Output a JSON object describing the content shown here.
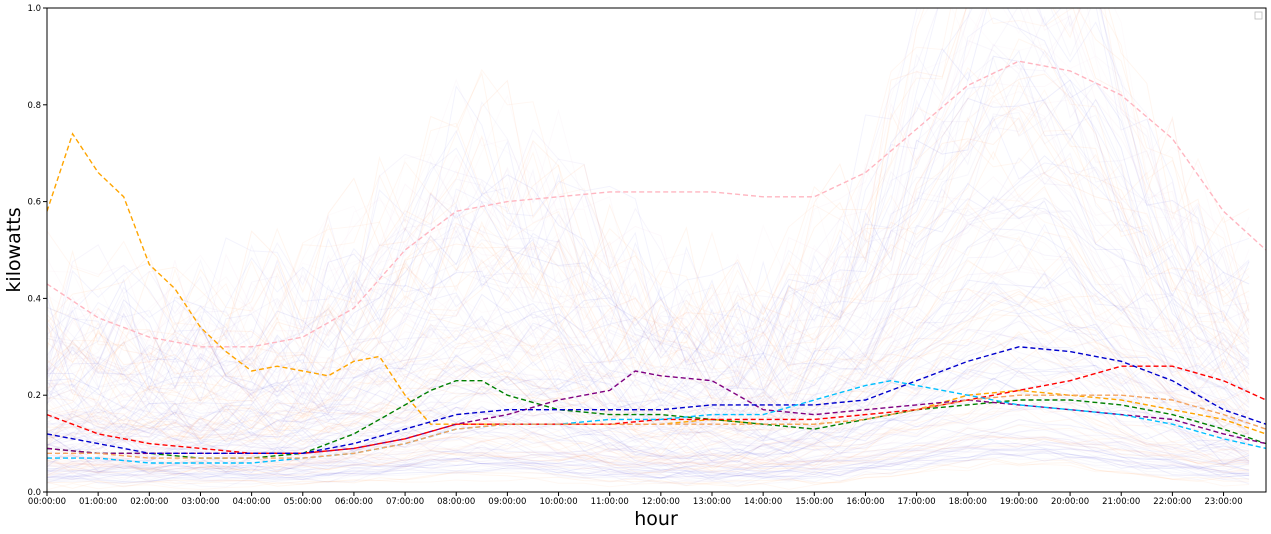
{
  "chart_data": {
    "type": "line",
    "title": "",
    "xlabel": "hour",
    "ylabel": "kilowatts",
    "xlim": [
      0,
      23.83
    ],
    "ylim": [
      0,
      1.0
    ],
    "x_tick_labels": [
      "00:00:00",
      "01:00:00",
      "02:00:00",
      "03:00:00",
      "04:00:00",
      "05:00:00",
      "06:00:00",
      "07:00:00",
      "08:00:00",
      "09:00:00",
      "10:00:00",
      "11:00:00",
      "12:00:00",
      "13:00:00",
      "14:00:00",
      "15:00:00",
      "16:00:00",
      "17:00:00",
      "18:00:00",
      "19:00:00",
      "20:00:00",
      "21:00:00",
      "22:00:00",
      "23:00:00"
    ],
    "x_tick_values": [
      0,
      1,
      2,
      3,
      4,
      5,
      6,
      7,
      8,
      9,
      10,
      11,
      12,
      13,
      14,
      15,
      16,
      17,
      18,
      19,
      20,
      21,
      22,
      23
    ],
    "y_tick_labels": [
      "0.0",
      "0.2",
      "0.4",
      "0.6",
      "0.8",
      "1.0"
    ],
    "y_tick_values": [
      0,
      0.2,
      0.4,
      0.6,
      0.8,
      1.0
    ],
    "grid": false,
    "legend": {
      "location": "top-right",
      "entries": []
    },
    "background_traces": {
      "colors": [
        "#0000cc",
        "#ff6a00",
        "#e0a0c0",
        "#7a5cc8"
      ],
      "opacity": 0.04
    },
    "series": [
      {
        "color": "#ffb6c1",
        "style": "dashed",
        "x": [
          0,
          1,
          2,
          3,
          4,
          5,
          6,
          7,
          8,
          9,
          10,
          11,
          12,
          13,
          14,
          15,
          16,
          17,
          18,
          19,
          20,
          21,
          22,
          23,
          23.83
        ],
        "y": [
          0.43,
          0.36,
          0.32,
          0.3,
          0.3,
          0.32,
          0.38,
          0.5,
          0.58,
          0.6,
          0.61,
          0.62,
          0.62,
          0.62,
          0.61,
          0.61,
          0.66,
          0.75,
          0.84,
          0.89,
          0.87,
          0.82,
          0.73,
          0.58,
          0.5
        ]
      },
      {
        "color": "#ffa500",
        "style": "dashed",
        "x": [
          0,
          0.5,
          1,
          1.5,
          2,
          2.5,
          3,
          3.5,
          4,
          4.5,
          5,
          5.5,
          6,
          6.5,
          7,
          7.5,
          8,
          9,
          10,
          11,
          12,
          13,
          14,
          15,
          16,
          17,
          18,
          19,
          20,
          21,
          22,
          23,
          23.83
        ],
        "y": [
          0.58,
          0.74,
          0.66,
          0.61,
          0.47,
          0.42,
          0.34,
          0.29,
          0.25,
          0.26,
          0.25,
          0.24,
          0.27,
          0.28,
          0.2,
          0.14,
          0.14,
          0.14,
          0.14,
          0.14,
          0.14,
          0.15,
          0.14,
          0.14,
          0.15,
          0.17,
          0.2,
          0.21,
          0.2,
          0.19,
          0.17,
          0.15,
          0.12
        ]
      },
      {
        "color": "#008000",
        "style": "dashed",
        "x": [
          0,
          1,
          2,
          3,
          4,
          5,
          6,
          7,
          7.5,
          8,
          8.5,
          9,
          10,
          11,
          12,
          13,
          14,
          15,
          16,
          17,
          18,
          19,
          20,
          21,
          22,
          23,
          23.83
        ],
        "y": [
          0.09,
          0.08,
          0.08,
          0.07,
          0.07,
          0.08,
          0.12,
          0.18,
          0.21,
          0.23,
          0.23,
          0.2,
          0.17,
          0.16,
          0.16,
          0.15,
          0.14,
          0.13,
          0.15,
          0.17,
          0.18,
          0.19,
          0.19,
          0.18,
          0.16,
          0.13,
          0.1
        ]
      },
      {
        "color": "#800080",
        "style": "dashed",
        "x": [
          0,
          1,
          2,
          3,
          4,
          5,
          6,
          7,
          8,
          9,
          10,
          11,
          11.5,
          12,
          13,
          14,
          15,
          16,
          17,
          18,
          19,
          20,
          21,
          22,
          23,
          23.83
        ],
        "y": [
          0.09,
          0.08,
          0.08,
          0.08,
          0.08,
          0.08,
          0.09,
          0.11,
          0.14,
          0.16,
          0.19,
          0.21,
          0.25,
          0.24,
          0.23,
          0.17,
          0.16,
          0.17,
          0.18,
          0.19,
          0.18,
          0.17,
          0.16,
          0.15,
          0.12,
          0.1
        ]
      },
      {
        "color": "#ff0000",
        "style": "dashed",
        "x": [
          0,
          1,
          2,
          3,
          4,
          5,
          6,
          7,
          8,
          9,
          10,
          11,
          12,
          13,
          14,
          15,
          16,
          17,
          18,
          19,
          20,
          21,
          22,
          23,
          23.83
        ],
        "y": [
          0.16,
          0.12,
          0.1,
          0.09,
          0.08,
          0.08,
          0.09,
          0.11,
          0.14,
          0.14,
          0.14,
          0.14,
          0.15,
          0.15,
          0.15,
          0.15,
          0.16,
          0.17,
          0.19,
          0.21,
          0.23,
          0.26,
          0.26,
          0.23,
          0.19
        ]
      },
      {
        "color": "#0000cd",
        "style": "dashed",
        "x": [
          0,
          1,
          2,
          3,
          4,
          5,
          6,
          7,
          8,
          9,
          10,
          11,
          12,
          13,
          14,
          15,
          16,
          17,
          18,
          19,
          20,
          21,
          22,
          23,
          23.83
        ],
        "y": [
          0.12,
          0.1,
          0.08,
          0.08,
          0.08,
          0.08,
          0.1,
          0.13,
          0.16,
          0.17,
          0.17,
          0.17,
          0.17,
          0.18,
          0.18,
          0.18,
          0.19,
          0.23,
          0.27,
          0.3,
          0.29,
          0.27,
          0.23,
          0.17,
          0.14
        ]
      },
      {
        "color": "#00bfff",
        "style": "dashed",
        "x": [
          0,
          1,
          2,
          3,
          4,
          5,
          6,
          7,
          8,
          9,
          10,
          11,
          12,
          13,
          14,
          15,
          16,
          16.5,
          17,
          18,
          19,
          20,
          21,
          22,
          23,
          23.83
        ],
        "y": [
          0.07,
          0.07,
          0.06,
          0.06,
          0.06,
          0.07,
          0.08,
          0.1,
          0.13,
          0.14,
          0.14,
          0.15,
          0.15,
          0.16,
          0.16,
          0.19,
          0.22,
          0.23,
          0.22,
          0.2,
          0.18,
          0.17,
          0.16,
          0.14,
          0.11,
          0.09
        ]
      },
      {
        "color": "#f4a460",
        "style": "dashed",
        "x": [
          0,
          1,
          2,
          3,
          4,
          5,
          6,
          7,
          8,
          9,
          10,
          11,
          12,
          13,
          14,
          15,
          16,
          17,
          18,
          19,
          20,
          21,
          22,
          23,
          23.83
        ],
        "y": [
          0.08,
          0.08,
          0.07,
          0.07,
          0.07,
          0.07,
          0.08,
          0.1,
          0.13,
          0.14,
          0.14,
          0.14,
          0.14,
          0.14,
          0.14,
          0.14,
          0.15,
          0.17,
          0.19,
          0.2,
          0.2,
          0.2,
          0.19,
          0.16,
          0.13
        ]
      }
    ]
  }
}
